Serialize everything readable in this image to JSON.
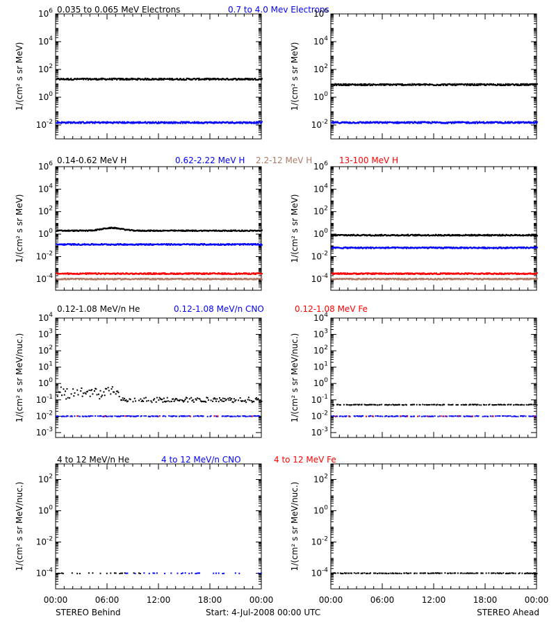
{
  "colors": {
    "black": "#000000",
    "blue": "#0000ff",
    "brown": "#b07a66",
    "red": "#ff0000"
  },
  "row_titles": [
    [
      {
        "text": "0.035 to 0.065 MeV Electrons",
        "color": "black"
      },
      {
        "text": "0.7 to 4.0 Mev Electrons",
        "color": "blue"
      }
    ],
    [
      {
        "text": "0.14-0.62 MeV H",
        "color": "black"
      },
      {
        "text": "0.62-2.22 MeV H",
        "color": "blue"
      },
      {
        "text": "2.2-12 MeV H",
        "color": "brown"
      },
      {
        "text": "13-100 MeV H",
        "color": "red"
      }
    ],
    [
      {
        "text": "0.12-1.08 MeV/n He",
        "color": "black"
      },
      {
        "text": "0.12-1.08 MeV/n CNO",
        "color": "blue"
      },
      {
        "text": "0.12-1.08 MeV Fe",
        "color": "red"
      }
    ],
    [
      {
        "text": "4 to 12 MeV/n He",
        "color": "black"
      },
      {
        "text": "4 to 12 MeV/n CNO",
        "color": "blue"
      },
      {
        "text": "4 to 12 MeV Fe",
        "color": "red"
      }
    ]
  ],
  "x_tick_labels": [
    "00:00",
    "06:00",
    "12:00",
    "18:00",
    "00:00"
  ],
  "footer": {
    "left": "STEREO Behind",
    "center": "Start:  4-Jul-2008 00:00 UTC",
    "right": "STEREO Ahead"
  },
  "chart_data": [
    {
      "id": "electrons-behind",
      "type": "scatter",
      "row": 0,
      "col": 0,
      "ylabel": "1/(cm² s sr MeV)",
      "yscale": "log",
      "ylim": [
        0.001,
        1000000
      ],
      "y_tick_exps": [
        -2,
        0,
        2,
        4,
        6
      ],
      "xlim": [
        0,
        24
      ],
      "x_unit": "hours",
      "series": [
        {
          "color": "black",
          "level": 20,
          "shape": "flat"
        },
        {
          "color": "blue",
          "level": 0.015,
          "shape": "flat"
        }
      ]
    },
    {
      "id": "electrons-ahead",
      "type": "scatter",
      "row": 0,
      "col": 1,
      "ylabel": "1/(cm² s sr MeV)",
      "yscale": "log",
      "ylim": [
        0.001,
        1000000
      ],
      "y_tick_exps": [
        -2,
        0,
        2,
        4,
        6
      ],
      "xlim": [
        0,
        24
      ],
      "x_unit": "hours",
      "series": [
        {
          "color": "black",
          "level": 8,
          "shape": "flat"
        },
        {
          "color": "blue",
          "level": 0.015,
          "shape": "flat"
        }
      ]
    },
    {
      "id": "protons-behind",
      "type": "scatter",
      "row": 1,
      "col": 0,
      "ylabel": "1/(cm² s sr MeV)",
      "yscale": "log",
      "ylim": [
        1e-05,
        1000000
      ],
      "y_tick_exps": [
        -4,
        -2,
        0,
        2,
        4,
        6
      ],
      "xlim": [
        0,
        24
      ],
      "x_unit": "hours",
      "series": [
        {
          "color": "black",
          "level": 2,
          "shape": "bump",
          "bump_center_hr": 6.5,
          "bump_peak": 3.5
        },
        {
          "color": "blue",
          "level": 0.12,
          "shape": "flat"
        },
        {
          "color": "brown",
          "level": 0.0001,
          "shape": "flat"
        },
        {
          "color": "red",
          "level": 0.0003,
          "shape": "flat"
        }
      ]
    },
    {
      "id": "protons-ahead",
      "type": "scatter",
      "row": 1,
      "col": 1,
      "ylabel": "1/(cm² s sr MeV)",
      "yscale": "log",
      "ylim": [
        1e-05,
        1000000
      ],
      "y_tick_exps": [
        -4,
        -2,
        0,
        2,
        4,
        6
      ],
      "xlim": [
        0,
        24
      ],
      "x_unit": "hours",
      "series": [
        {
          "color": "black",
          "level": 0.8,
          "shape": "flat"
        },
        {
          "color": "blue",
          "level": 0.06,
          "shape": "flat"
        },
        {
          "color": "brown",
          "level": 0.0001,
          "shape": "flat"
        },
        {
          "color": "red",
          "level": 0.0003,
          "shape": "flat"
        }
      ]
    },
    {
      "id": "heavy-low-behind",
      "type": "scatter",
      "row": 2,
      "col": 0,
      "ylabel": "1/(cm² s sr MeV/nuc.)",
      "yscale": "log",
      "ylim": [
        0.0005,
        10000
      ],
      "y_tick_exps": [
        -3,
        -2,
        -1,
        0,
        1,
        2,
        3,
        4
      ],
      "xlim": [
        0,
        24
      ],
      "x_unit": "hours",
      "series": [
        {
          "color": "black",
          "level": 0.1,
          "shape": "sparse-early-high",
          "early_level": 0.3
        },
        {
          "color": "blue",
          "level": 0.01,
          "shape": "sparse"
        },
        {
          "color": "red",
          "level": 0.01,
          "shape": "rare"
        }
      ]
    },
    {
      "id": "heavy-low-ahead",
      "type": "scatter",
      "row": 2,
      "col": 1,
      "ylabel": "1/(cm² s sr MeV/nuc.)",
      "yscale": "log",
      "ylim": [
        0.0005,
        10000
      ],
      "y_tick_exps": [
        -3,
        -2,
        -1,
        0,
        1,
        2,
        3,
        4
      ],
      "xlim": [
        0,
        24
      ],
      "x_unit": "hours",
      "series": [
        {
          "color": "black",
          "level": 0.05,
          "shape": "sparse"
        },
        {
          "color": "blue",
          "level": 0.01,
          "shape": "sparse"
        },
        {
          "color": "red",
          "level": 0.01,
          "shape": "rare"
        }
      ]
    },
    {
      "id": "heavy-high-behind",
      "type": "scatter",
      "row": 3,
      "col": 0,
      "ylabel": "1/(cm² s sr MeV/nuc.)",
      "yscale": "log",
      "ylim": [
        1e-05,
        1000
      ],
      "y_tick_exps": [
        -4,
        -2,
        0,
        2
      ],
      "xlim": [
        0,
        24
      ],
      "x_unit": "hours",
      "series": [
        {
          "color": "black",
          "level": 0.0001,
          "shape": "sparse-early"
        },
        {
          "color": "blue",
          "level": 0.0001,
          "shape": "sparse-late"
        }
      ]
    },
    {
      "id": "heavy-high-ahead",
      "type": "scatter",
      "row": 3,
      "col": 1,
      "ylabel": "1/(cm² s sr MeV/nuc.)",
      "yscale": "log",
      "ylim": [
        1e-05,
        1000
      ],
      "y_tick_exps": [
        -4,
        -2,
        0,
        2
      ],
      "xlim": [
        0,
        24
      ],
      "x_unit": "hours",
      "series": [
        {
          "color": "black",
          "level": 0.0001,
          "shape": "sparse"
        }
      ]
    }
  ]
}
